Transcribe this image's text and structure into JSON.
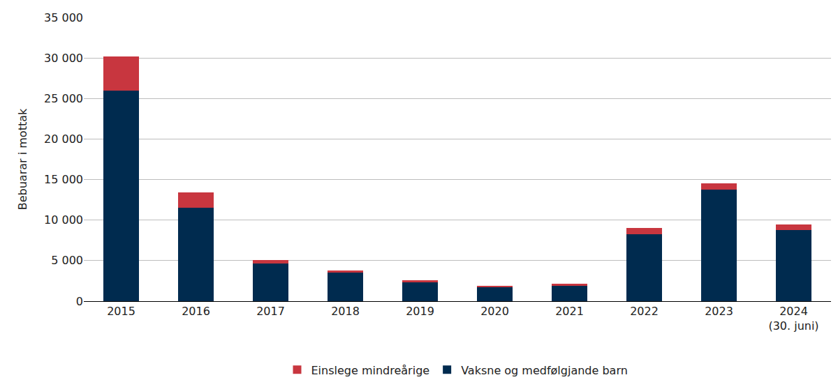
{
  "chart_data": {
    "type": "bar",
    "stacked": true,
    "y_label": "Bebuarar i mottak",
    "categories": [
      "2015",
      "2016",
      "2017",
      "2018",
      "2019",
      "2020",
      "2021",
      "2022",
      "2023",
      "2024 (30. juni)"
    ],
    "series": [
      {
        "name": "Vaksne og medfølgjande barn",
        "color": "#002b4f",
        "values": [
          26000,
          11500,
          4650,
          3500,
          2350,
          1700,
          1900,
          8250,
          13800,
          8750
        ]
      },
      {
        "name": "Einslege mindreårige",
        "color": "#c8363f",
        "values": [
          4150,
          1900,
          430,
          250,
          230,
          230,
          250,
          750,
          750,
          700
        ]
      }
    ],
    "ylim": [
      0,
      35000
    ],
    "yticks": [
      0,
      {
        "value": 5000,
        "label": "5 000"
      },
      {
        "value": 10000,
        "label": "10 000"
      },
      {
        "value": 15000,
        "label": "15 000"
      },
      {
        "value": 20000,
        "label": "20 000"
      },
      {
        "value": 25000,
        "label": "25 000"
      },
      {
        "value": 30000,
        "label": "30 000"
      },
      {
        "value": 35000,
        "label": "35 000"
      }
    ],
    "grid": true,
    "legend": "bottom"
  }
}
